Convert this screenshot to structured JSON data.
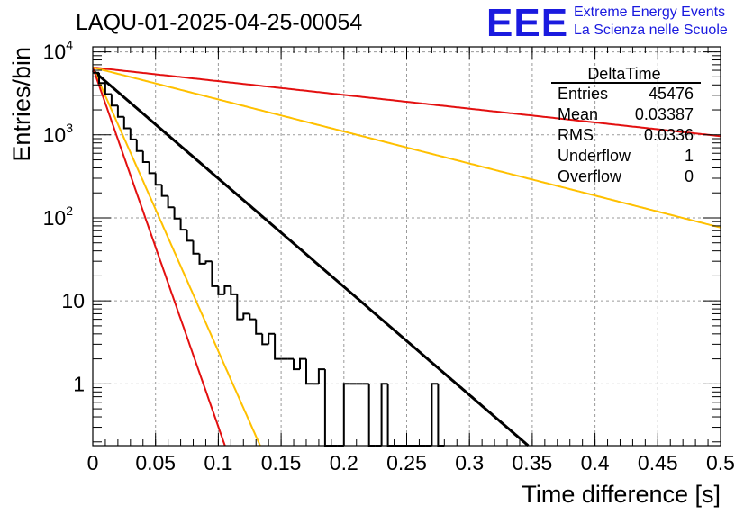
{
  "chart_data": {
    "type": "histogram",
    "title": "LAQU-01-2025-04-25-00054",
    "brand": {
      "logo": "EEE",
      "line1": "Extreme Energy Events",
      "line2": "La Scienza nelle Scuole",
      "color": "#1a1adf"
    },
    "xlabel": "Time difference [s]",
    "ylabel": "Entries/bin",
    "xlim": [
      0,
      0.5
    ],
    "ylim": [
      0.18,
      11500
    ],
    "yscale": "log",
    "grid": true,
    "x_ticks": [
      0,
      0.05,
      0.1,
      0.15,
      0.2,
      0.25,
      0.3,
      0.35,
      0.4,
      0.45,
      0.5
    ],
    "x_tick_labels": [
      "0",
      "0.05",
      "0.1",
      "0.15",
      "0.2",
      "0.25",
      "0.3",
      "0.35",
      "0.4",
      "0.45",
      "0.5"
    ],
    "y_ticks": [
      {
        "value": 1,
        "base": "1",
        "exp": ""
      },
      {
        "value": 10,
        "base": "10",
        "exp": ""
      },
      {
        "value": 100,
        "base": "10",
        "exp": "2"
      },
      {
        "value": 1000,
        "base": "10",
        "exp": "3"
      },
      {
        "value": 10000,
        "base": "10",
        "exp": "4"
      }
    ],
    "histogram": {
      "name": "DeltaTime",
      "color": "#000000",
      "bin_width": 0.005,
      "counts": [
        5600,
        4200,
        3100,
        2250,
        1650,
        1200,
        880,
        640,
        470,
        345,
        250,
        184,
        134,
        98,
        72,
        53,
        37,
        28,
        30,
        15,
        12,
        15,
        12,
        6,
        7,
        6,
        4,
        3,
        4,
        2,
        2,
        2,
        1.5,
        2,
        1,
        1,
        1.5,
        0,
        0,
        0,
        1,
        1,
        1,
        1,
        0,
        0,
        1,
        0,
        0,
        0,
        0,
        0,
        0,
        0,
        1,
        0
      ]
    },
    "fit_lines": [
      {
        "name": "fit",
        "color": "#000000",
        "x0": 0,
        "y0": 6000,
        "tau": 0.0333
      },
      {
        "name": "red-slow",
        "color": "#e31010",
        "x0": 0,
        "y0": 6500,
        "tau": 0.262
      },
      {
        "name": "yellow-slow",
        "color": "#ffc000",
        "x0": 0,
        "y0": 6500,
        "tau": 0.1125
      },
      {
        "name": "yellow-fast",
        "color": "#ffc000",
        "x0": 0,
        "y0": 6500,
        "tau": 0.0127
      },
      {
        "name": "red-fast",
        "color": "#e31010",
        "x0": 0,
        "y0": 6500,
        "tau": 0.01003
      }
    ],
    "stats": {
      "title": "DeltaTime",
      "rows": [
        {
          "label": "Entries",
          "value": "45476"
        },
        {
          "label": "Mean",
          "value": "0.03387"
        },
        {
          "label": "RMS",
          "value": "0.0336"
        },
        {
          "label": "Underflow",
          "value": "1"
        },
        {
          "label": "Overflow",
          "value": "0"
        }
      ],
      "placement": "top-right"
    }
  }
}
